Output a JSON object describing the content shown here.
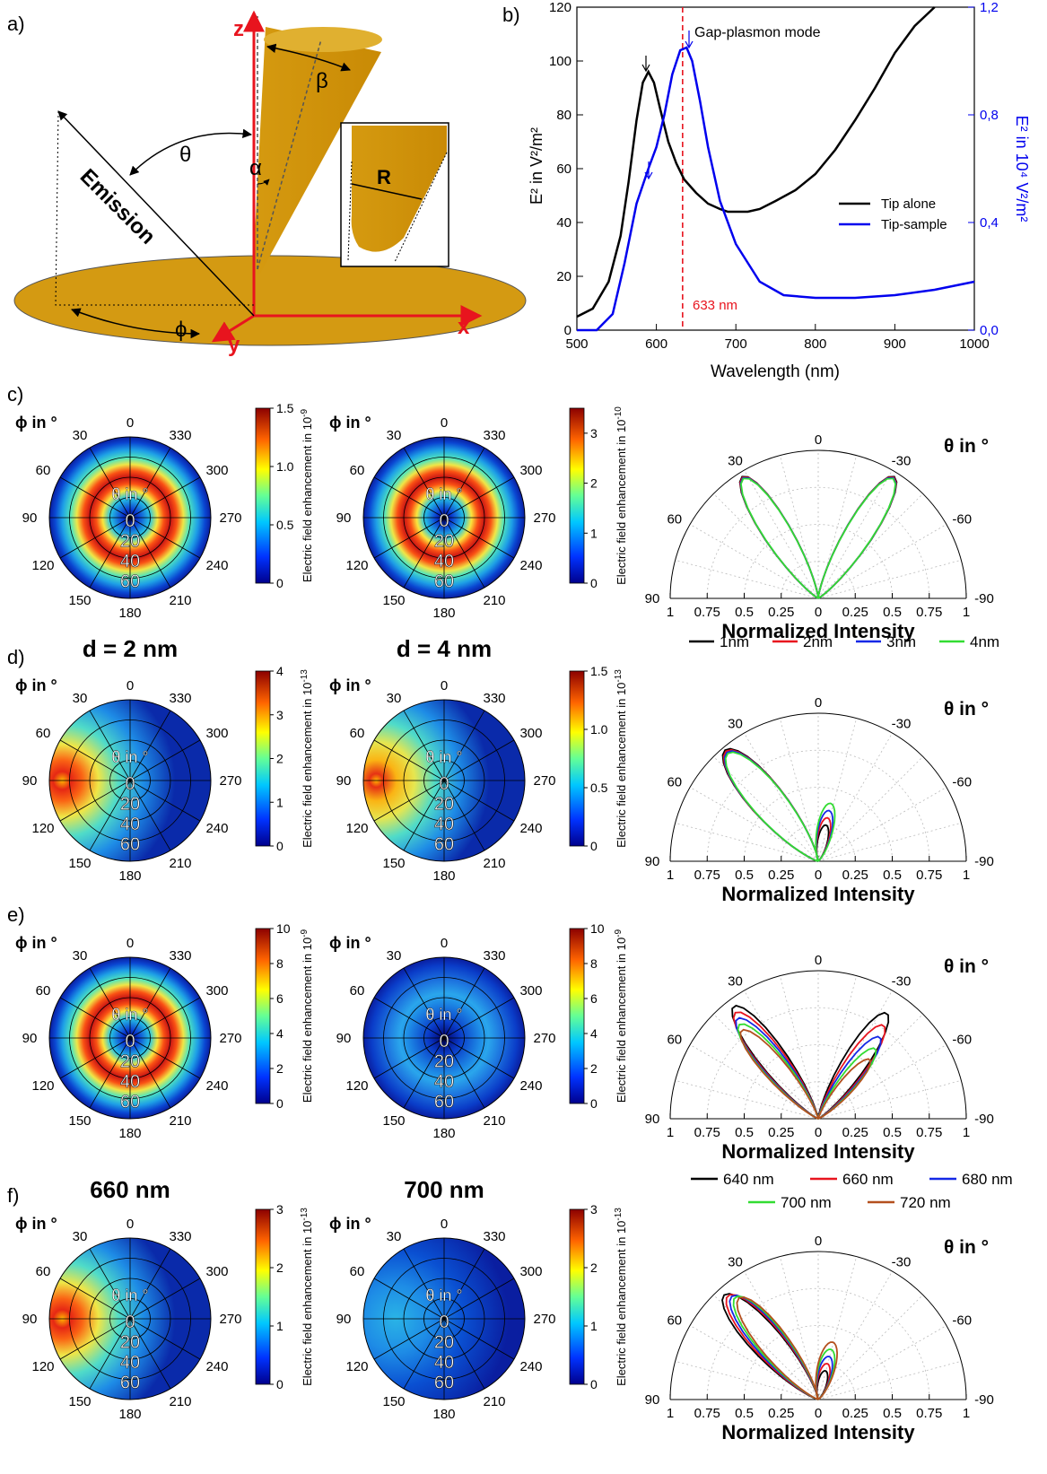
{
  "figure": {
    "panel_labels": [
      "a)",
      "b)",
      "c)",
      "d)",
      "e)",
      "f)"
    ],
    "schematic": {
      "axes": {
        "z": "z",
        "x": "x",
        "y": "y"
      },
      "angles": {
        "theta": "θ",
        "alpha": "α",
        "beta": "β",
        "phi": "ϕ"
      },
      "emission_label": "Emission",
      "radius_label": "R"
    },
    "polar_map_labels": {
      "phi_label": "ϕ in °",
      "theta_label": "θ in °",
      "azimuth_ticks": [
        "0",
        "30",
        "60",
        "90",
        "120",
        "150",
        "180",
        "210",
        "240",
        "270",
        "300",
        "330"
      ],
      "radial_ticks": [
        "0",
        "20",
        "40",
        "60"
      ]
    },
    "colorbar_label": "Electric field enhancement in",
    "row_titles": {
      "d": [
        "d = 2 nm",
        "d = 4 nm"
      ],
      "f": [
        "660 nm",
        "700 nm"
      ]
    },
    "colorbars": [
      {
        "row": "c",
        "col": 1,
        "exp": "10",
        "exp_sup": "-9",
        "ticks": [
          "0",
          "0.5",
          "1.0",
          "1.5"
        ],
        "max": 1.5
      },
      {
        "row": "c",
        "col": 2,
        "exp": "10",
        "exp_sup": "-10",
        "ticks": [
          "0",
          "1",
          "2",
          "3"
        ],
        "max": 3.5
      },
      {
        "row": "d",
        "col": 1,
        "exp": "10",
        "exp_sup": "-13",
        "ticks": [
          "0",
          "1",
          "2",
          "3",
          "4"
        ],
        "max": 4
      },
      {
        "row": "d",
        "col": 2,
        "exp": "10",
        "exp_sup": "-13",
        "ticks": [
          "0",
          "0.5",
          "1.0",
          "1.5"
        ],
        "max": 1.5
      },
      {
        "row": "e",
        "col": 1,
        "exp": "10",
        "exp_sup": "-9",
        "ticks": [
          "0",
          "2",
          "4",
          "6",
          "8",
          "10"
        ],
        "max": 10
      },
      {
        "row": "e",
        "col": 2,
        "exp": "10",
        "exp_sup": "-9",
        "ticks": [
          "0",
          "2",
          "4",
          "6",
          "8",
          "10"
        ],
        "max": 10
      },
      {
        "row": "f",
        "col": 1,
        "exp": "10",
        "exp_sup": "-13",
        "ticks": [
          "0",
          "1",
          "2",
          "3"
        ],
        "max": 3
      },
      {
        "row": "f",
        "col": 2,
        "exp": "10",
        "exp_sup": "-13",
        "ticks": [
          "0",
          "1",
          "2",
          "3"
        ],
        "max": 3
      }
    ],
    "polar_plot_labels": {
      "title": "θ in °",
      "angle_ticks": [
        "0",
        "30",
        "60",
        "90",
        "-30",
        "-60",
        "-90"
      ],
      "radial_ticks": [
        "1",
        "0.75",
        "0.5",
        "0.25",
        "0",
        "0.25",
        "0.5",
        "0.75",
        "1"
      ],
      "xlabel": "Normalized Intensity"
    },
    "legends": {
      "gap": [
        "1nm",
        "2nm",
        "3nm",
        "4nm"
      ],
      "wavelength": [
        "640 nm",
        "660 nm",
        "680 nm",
        "700 nm",
        "720 nm"
      ]
    }
  },
  "chart_data": [
    {
      "type": "line",
      "panel": "b",
      "title": "Gap-plasmon mode",
      "xlabel": "Wavelength (nm)",
      "ylabel": "E² in V²/m²",
      "y2label": "E² in 10⁴ V²/m²",
      "xlim": [
        500,
        1000
      ],
      "ylim": [
        0,
        120
      ],
      "y2lim": [
        0,
        1.2
      ],
      "x_ticks": [
        "500",
        "600",
        "700",
        "800",
        "900",
        "1000"
      ],
      "y_ticks": [
        "0",
        "20",
        "40",
        "60",
        "80",
        "100",
        "120"
      ],
      "y2_ticks": [
        "0,0",
        "0,4",
        "0,8",
        "1,2"
      ],
      "annotation": "633 nm",
      "annotation_x": 633,
      "legend_position": "right",
      "series": [
        {
          "name": "Tip alone",
          "color": "#000000",
          "axis": "left",
          "x": [
            500,
            520,
            540,
            555,
            565,
            575,
            583,
            590,
            597,
            605,
            615,
            625,
            635,
            650,
            665,
            680,
            690,
            700,
            715,
            730,
            750,
            775,
            800,
            825,
            850,
            875,
            900,
            925,
            950
          ],
          "y": [
            5,
            8,
            18,
            35,
            55,
            78,
            92,
            96,
            92,
            82,
            70,
            62,
            56,
            51,
            47,
            45,
            44,
            44,
            44,
            45,
            48,
            52,
            58,
            67,
            78,
            90,
            103,
            113,
            120
          ]
        },
        {
          "name": "Tip-sample",
          "color": "#0000ee",
          "axis": "right",
          "x": [
            500,
            525,
            545,
            560,
            575,
            590,
            600,
            610,
            620,
            630,
            638,
            645,
            655,
            665,
            680,
            700,
            730,
            760,
            800,
            850,
            900,
            950,
            1000
          ],
          "y": [
            0.0,
            0.0,
            0.06,
            0.25,
            0.47,
            0.6,
            0.68,
            0.8,
            0.95,
            1.04,
            1.05,
            1.0,
            0.85,
            0.68,
            0.48,
            0.32,
            0.18,
            0.13,
            0.12,
            0.12,
            0.13,
            0.15,
            0.18
          ]
        }
      ]
    },
    {
      "type": "heatmap",
      "panel": "c",
      "map": "ring",
      "ring_theta": 30,
      "source": "polar intensity map",
      "values_note": "ring of maximum at theta≈30°"
    },
    {
      "type": "heatmap",
      "panel": "d",
      "map": "lobe"
    },
    {
      "type": "heatmap",
      "panel": "e",
      "maps": [
        "ring",
        "weak-ring"
      ]
    },
    {
      "type": "heatmap",
      "panel": "f",
      "maps": [
        "lobe",
        "weak-lobe"
      ]
    }
  ]
}
